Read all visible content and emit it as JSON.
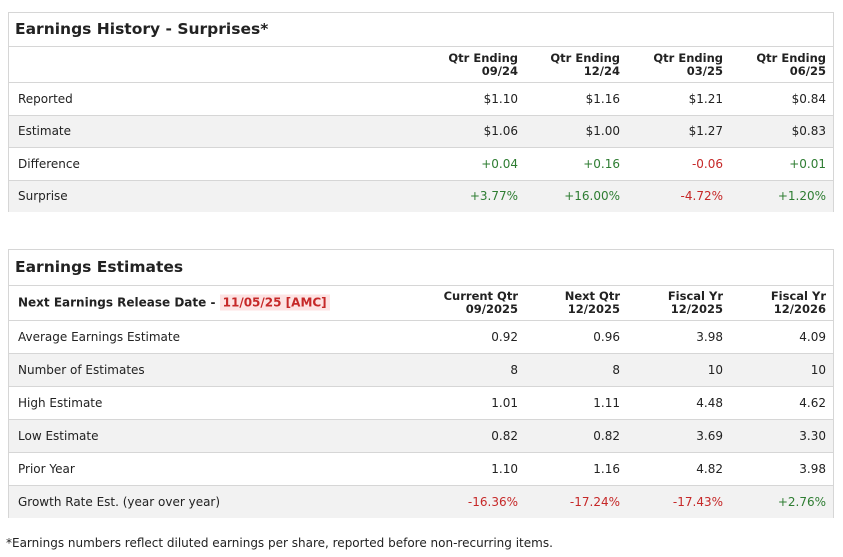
{
  "surprises": {
    "title": "Earnings History - Surprises*",
    "columns": [
      {
        "line1": "Qtr Ending",
        "line2": "09/24"
      },
      {
        "line1": "Qtr Ending",
        "line2": "12/24"
      },
      {
        "line1": "Qtr Ending",
        "line2": "03/25"
      },
      {
        "line1": "Qtr Ending",
        "line2": "06/25"
      }
    ],
    "rows": [
      {
        "label": "Reported",
        "values": [
          "$1.10",
          "$1.16",
          "$1.21",
          "$0.84"
        ]
      },
      {
        "label": "Estimate",
        "values": [
          "$1.06",
          "$1.00",
          "$1.27",
          "$0.83"
        ]
      },
      {
        "label": "Difference",
        "values": [
          "+0.04",
          "+0.16",
          "-0.06",
          "+0.01"
        ]
      },
      {
        "label": "Surprise",
        "values": [
          "+3.77%",
          "+16.00%",
          "-4.72%",
          "+1.20%"
        ]
      }
    ]
  },
  "estimates": {
    "title": "Earnings Estimates",
    "release_label": "Next Earnings Release Date -",
    "release_date": "11/05/25 [AMC]",
    "columns": [
      {
        "line1": "Current Qtr",
        "line2": "09/2025"
      },
      {
        "line1": "Next Qtr",
        "line2": "12/2025"
      },
      {
        "line1": "Fiscal Yr",
        "line2": "12/2025"
      },
      {
        "line1": "Fiscal Yr",
        "line2": "12/2026"
      }
    ],
    "rows": [
      {
        "label": "Average Earnings Estimate",
        "values": [
          "0.92",
          "0.96",
          "3.98",
          "4.09"
        ]
      },
      {
        "label": "Number of Estimates",
        "values": [
          "8",
          "8",
          "10",
          "10"
        ]
      },
      {
        "label": "High Estimate",
        "values": [
          "1.01",
          "1.11",
          "4.48",
          "4.62"
        ]
      },
      {
        "label": "Low Estimate",
        "values": [
          "0.82",
          "0.82",
          "3.69",
          "3.30"
        ]
      },
      {
        "label": "Prior Year",
        "values": [
          "1.10",
          "1.16",
          "4.82",
          "3.98"
        ]
      },
      {
        "label": "Growth Rate Est. (year over year)",
        "values": [
          "-16.36%",
          "-17.24%",
          "-17.43%",
          "+2.76%"
        ]
      }
    ]
  },
  "footnote": "*Earnings numbers reflect diluted earnings per share, reported before non-recurring items."
}
